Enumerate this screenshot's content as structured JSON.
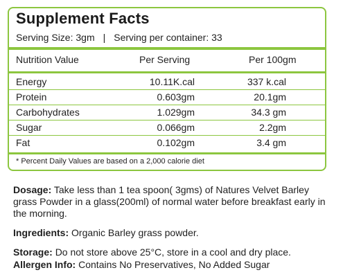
{
  "facts": {
    "title": "Supplement Facts",
    "serving_size": "Serving Size: 3gm",
    "separator": "|",
    "servings_per_container": "Serving per container: 33",
    "headers": [
      "Nutrition Value",
      "Per Serving",
      "Per 100gm"
    ],
    "rows": [
      {
        "name": "Energy",
        "per_serving": "10.11K.cal",
        "per_100": "337 k.cal"
      },
      {
        "name": "Protein",
        "per_serving": "0.603gm",
        "per_100": "20.1gm"
      },
      {
        "name": "Carbohydrates",
        "per_serving": "1.029gm",
        "per_100": "34.3 gm"
      },
      {
        "name": "Sugar",
        "per_serving": "0.066gm",
        "per_100": "2.2gm"
      },
      {
        "name": "Fat",
        "per_serving": "0.102gm",
        "per_100": "3.4 gm"
      }
    ],
    "footnote": "* Percent Daily Values are based on a 2,000 calorie diet"
  },
  "info": {
    "dosage_label": "Dosage:",
    "dosage_text": "Take less than 1 tea spoon( 3gms) of Natures Velvet Barley grass Powder in a glass(200ml) of normal water before breakfast early in the morning.",
    "ingredients_label": "Ingredients:",
    "ingredients_text": "Organic Barley grass powder.",
    "storage_label": "Storage:",
    "storage_text": "Do not store above 25°C, store in a cool and dry place.",
    "allergen_label": "Allergen Info:",
    "allergen_text": "Contains No Preservatives, No Added Sugar"
  },
  "colors": {
    "accent": "#8cc63f"
  }
}
